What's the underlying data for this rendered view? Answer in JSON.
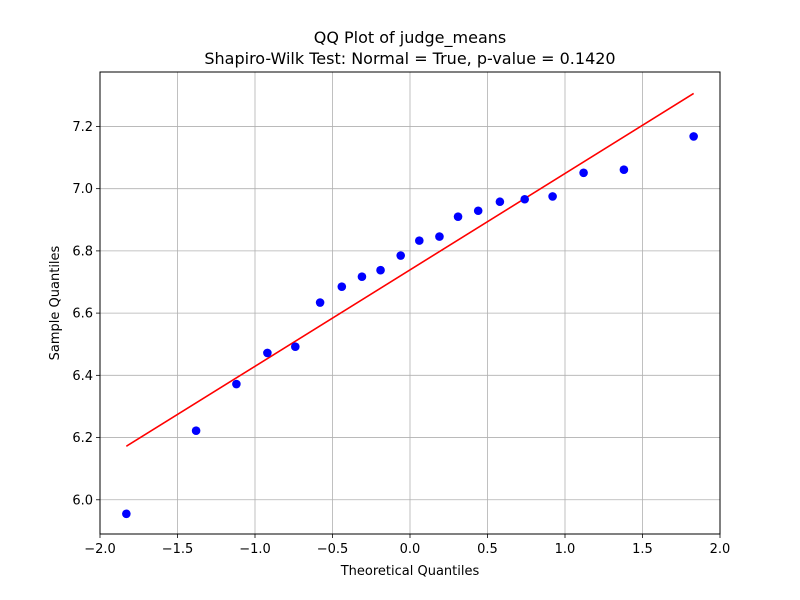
{
  "chart_data": {
    "type": "scatter",
    "title": "QQ Plot of judge_means",
    "subtitle": "Shapiro-Wilk Test: Normal = True, p-value = 0.1420",
    "xlabel": "Theoretical Quantiles",
    "ylabel": "Sample Quantiles",
    "xlim": [
      -2.0,
      2.0
    ],
    "ylim": [
      5.89,
      7.375
    ],
    "xticks": [
      -2.0,
      -1.5,
      -1.0,
      -0.5,
      0.0,
      0.5,
      1.0,
      1.5,
      2.0
    ],
    "xtick_labels": [
      "−2.0",
      "−1.5",
      "−1.0",
      "−0.5",
      "0.0",
      "0.5",
      "1.0",
      "1.5",
      "2.0"
    ],
    "yticks": [
      6.0,
      6.2,
      6.4,
      6.6,
      6.8,
      7.0,
      7.2
    ],
    "ytick_labels": [
      "6.0",
      "6.2",
      "6.4",
      "6.6",
      "6.8",
      "7.0",
      "7.2"
    ],
    "grid": true,
    "point_color": "#0000ff",
    "line_color": "#ff0000",
    "points": [
      {
        "x": -1.83,
        "y": 5.955
      },
      {
        "x": -1.38,
        "y": 6.222
      },
      {
        "x": -1.12,
        "y": 6.372
      },
      {
        "x": -0.92,
        "y": 6.472
      },
      {
        "x": -0.74,
        "y": 6.492
      },
      {
        "x": -0.58,
        "y": 6.634
      },
      {
        "x": -0.44,
        "y": 6.685
      },
      {
        "x": -0.31,
        "y": 6.717
      },
      {
        "x": -0.19,
        "y": 6.738
      },
      {
        "x": -0.06,
        "y": 6.785
      },
      {
        "x": 0.06,
        "y": 6.833
      },
      {
        "x": 0.19,
        "y": 6.846
      },
      {
        "x": 0.31,
        "y": 6.91
      },
      {
        "x": 0.44,
        "y": 6.929
      },
      {
        "x": 0.58,
        "y": 6.958
      },
      {
        "x": 0.74,
        "y": 6.966
      },
      {
        "x": 0.92,
        "y": 6.975
      },
      {
        "x": 1.12,
        "y": 7.051
      },
      {
        "x": 1.38,
        "y": 7.061
      },
      {
        "x": 1.83,
        "y": 7.168
      }
    ],
    "fit_line": {
      "x": [
        -1.83,
        1.83
      ],
      "y": [
        6.172,
        7.306
      ]
    }
  }
}
